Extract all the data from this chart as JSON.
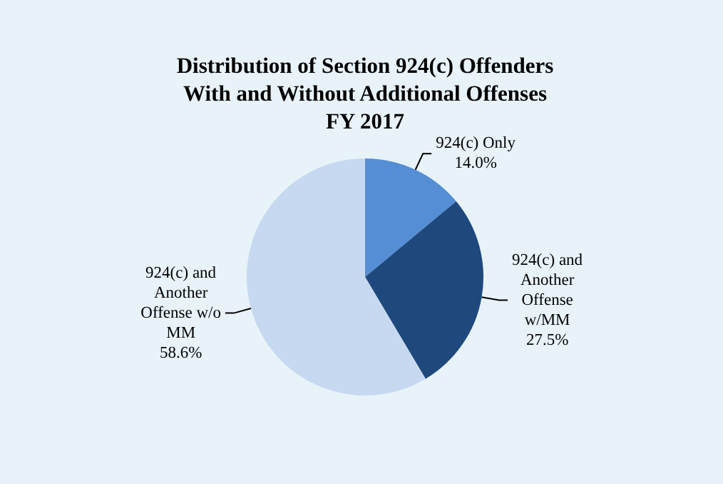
{
  "chart_data": {
    "type": "pie",
    "title": "Distribution of Section 924(c) Offenders\nWith and Without Additional Offenses\nFY 2017",
    "categories": [
      "924(c) Only",
      "924(c) and\nAnother\nOffense\nw/MM",
      "924(c) and\nAnother\nOffense w/o\nMM"
    ],
    "values": [
      14.0,
      27.5,
      58.6
    ],
    "value_labels": [
      "14.0%",
      "27.5%",
      "58.6%"
    ],
    "colors": [
      "#558ed5",
      "#1f497d",
      "#c6d9f1"
    ],
    "legend": false
  }
}
